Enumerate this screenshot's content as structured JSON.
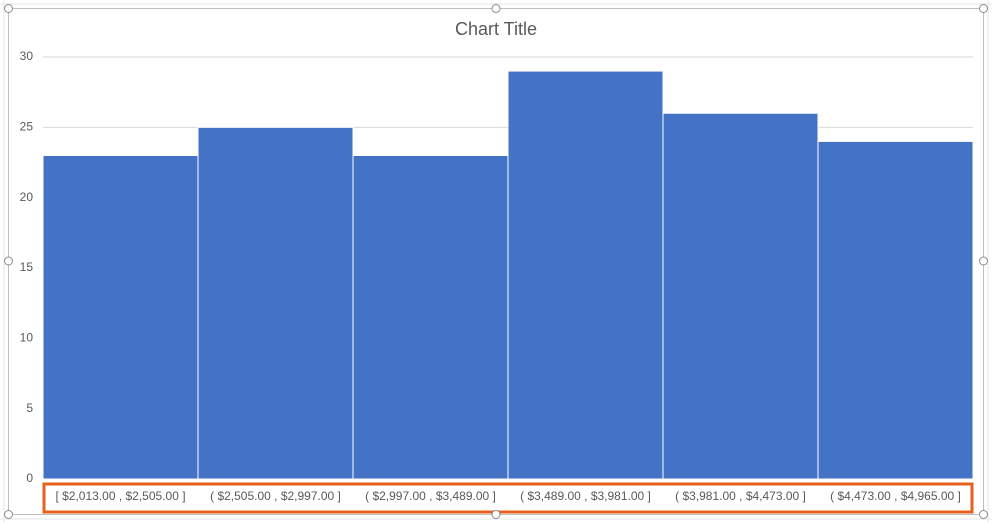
{
  "chart_data": {
    "type": "bar",
    "title": "Chart Title",
    "categories": [
      "[ $2,013.00 ,  $2,505.00 ]",
      "( $2,505.00 ,  $2,997.00 ]",
      "( $2,997.00 ,  $3,489.00 ]",
      "( $3,489.00 ,  $3,981.00 ]",
      "( $3,981.00 ,  $4,473.00 ]",
      "( $4,473.00 ,  $4,965.00 ]"
    ],
    "values": [
      23,
      25,
      23,
      29,
      26,
      24
    ],
    "color": "#4472c4",
    "ylim": [
      0,
      30
    ],
    "yticks": [
      0,
      5,
      10,
      15,
      20,
      25,
      30
    ],
    "grid": true
  }
}
